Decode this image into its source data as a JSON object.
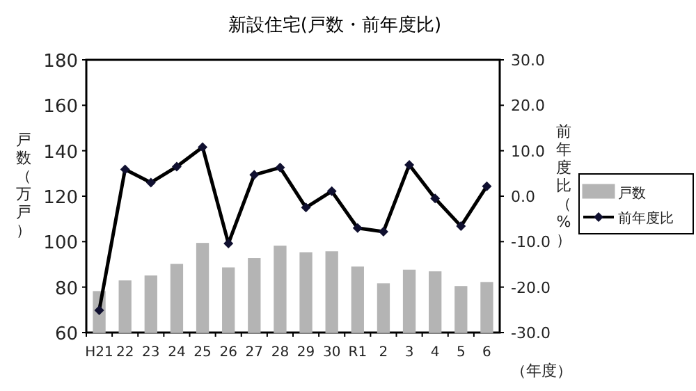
{
  "chart_data": {
    "type": "bar",
    "title": "新設住宅(戸数・前年度比)",
    "ylabel": "戸数（万戸）",
    "y2label": "前年度比（%）",
    "xlabel": "（年度）",
    "categories": [
      "H21",
      "22",
      "23",
      "24",
      "25",
      "26",
      "27",
      "28",
      "29",
      "30",
      "R1",
      "2",
      "3",
      "4",
      "5",
      "6"
    ],
    "series": [
      {
        "name": "戸数",
        "color": "#b4b4b4",
        "values": [
          78,
          82.7,
          84.9,
          90,
          99.2,
          88.4,
          92.5,
          98,
          95.1,
          95.5,
          88.8,
          81.4,
          87.4,
          86.7,
          80.2,
          82
        ]
      },
      {
        "name": "前年度比",
        "type": "line",
        "axis": "y2",
        "color": "#101030",
        "values": [
          -25.1,
          5.9,
          3.0,
          6.5,
          10.8,
          -10.4,
          4.7,
          6.3,
          -2.5,
          1.1,
          -7.0,
          -7.8,
          6.9,
          -0.5,
          -6.6,
          2.2
        ]
      }
    ],
    "ylim": [
      60,
      180
    ],
    "yticks": [
      60,
      80,
      100,
      120,
      140,
      160,
      180
    ],
    "y2lim": [
      -30,
      30
    ],
    "y2ticks": [
      {
        "value": -30,
        "label": "-30.0"
      },
      {
        "value": -20,
        "label": "-20.0"
      },
      {
        "value": -10,
        "label": "-10.0"
      },
      {
        "value": 0,
        "label": "0.0"
      },
      {
        "value": 10,
        "label": "10.0"
      },
      {
        "value": 20,
        "label": "20.0"
      },
      {
        "value": 30,
        "label": "30.0"
      }
    ],
    "legend": "right",
    "marker": "diamond"
  }
}
